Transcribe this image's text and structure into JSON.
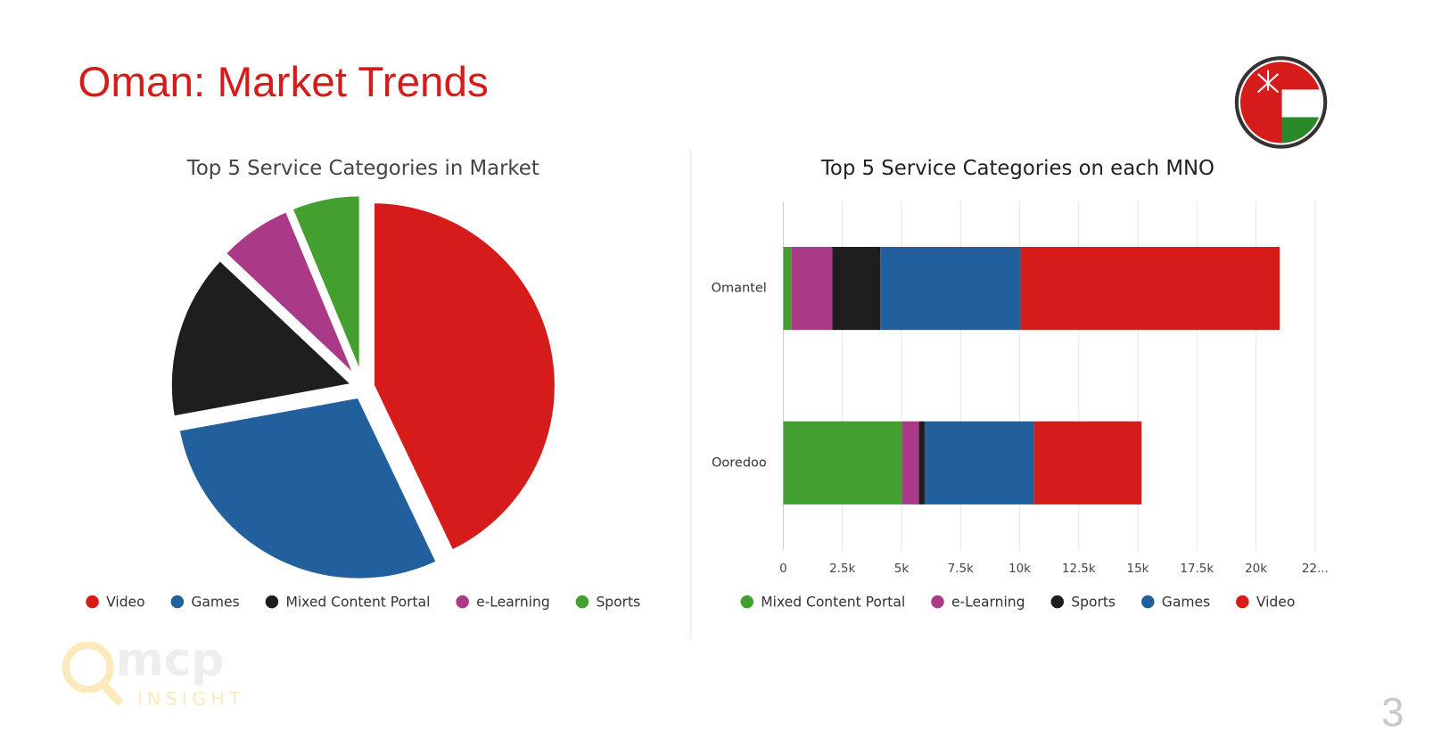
{
  "header": {
    "title": "Oman: Market Trends"
  },
  "page_number": "3",
  "logo": {
    "name": "mcp",
    "tagline": "INSIGHT"
  },
  "chart_data": [
    {
      "type": "pie",
      "title": "Top 5 Service Categories in Market",
      "categories": [
        "Video",
        "Games",
        "Mixed Content Portal",
        "e-Learning",
        "Sports"
      ],
      "values": [
        15520,
        10560,
        5390,
        2420,
        2270
      ],
      "colors": [
        "#d51c1a",
        "#22609d",
        "#1e1e1e",
        "#aa3a87",
        "#43a02e"
      ],
      "legend": "bottom"
    },
    {
      "type": "stacked-bar-horizontal",
      "title": "Top 5 Service Categories on each MNO",
      "categories": [
        "Omantel",
        "Ooredoo"
      ],
      "series": [
        {
          "name": "Mixed Content Portal",
          "color": "#43a02e",
          "values": [
            350,
            5040
          ]
        },
        {
          "name": "e-Learning",
          "color": "#aa3a87",
          "values": [
            1720,
            700
          ]
        },
        {
          "name": "Sports",
          "color": "#1e1e1e",
          "values": [
            2030,
            240
          ]
        },
        {
          "name": "Games",
          "color": "#22609d",
          "values": [
            5940,
            4620
          ]
        },
        {
          "name": "Video",
          "color": "#d51c1a",
          "values": [
            10960,
            4560
          ]
        }
      ],
      "xlim": [
        0,
        22500
      ],
      "xticks": [
        0,
        {
          "value": 2500,
          "label": "2.5k"
        },
        {
          "value": 5000,
          "label": "5k"
        },
        {
          "value": 7500,
          "label": "7.5k"
        },
        {
          "value": 10000,
          "label": "10k"
        },
        {
          "value": 12500,
          "label": "12.5k"
        },
        {
          "value": 15000,
          "label": "15k"
        },
        {
          "value": 17500,
          "label": "17.5k"
        },
        {
          "value": 20000,
          "label": "20k"
        },
        {
          "value": 22500,
          "label": "22..."
        }
      ],
      "grid": true,
      "legend": "bottom"
    }
  ]
}
